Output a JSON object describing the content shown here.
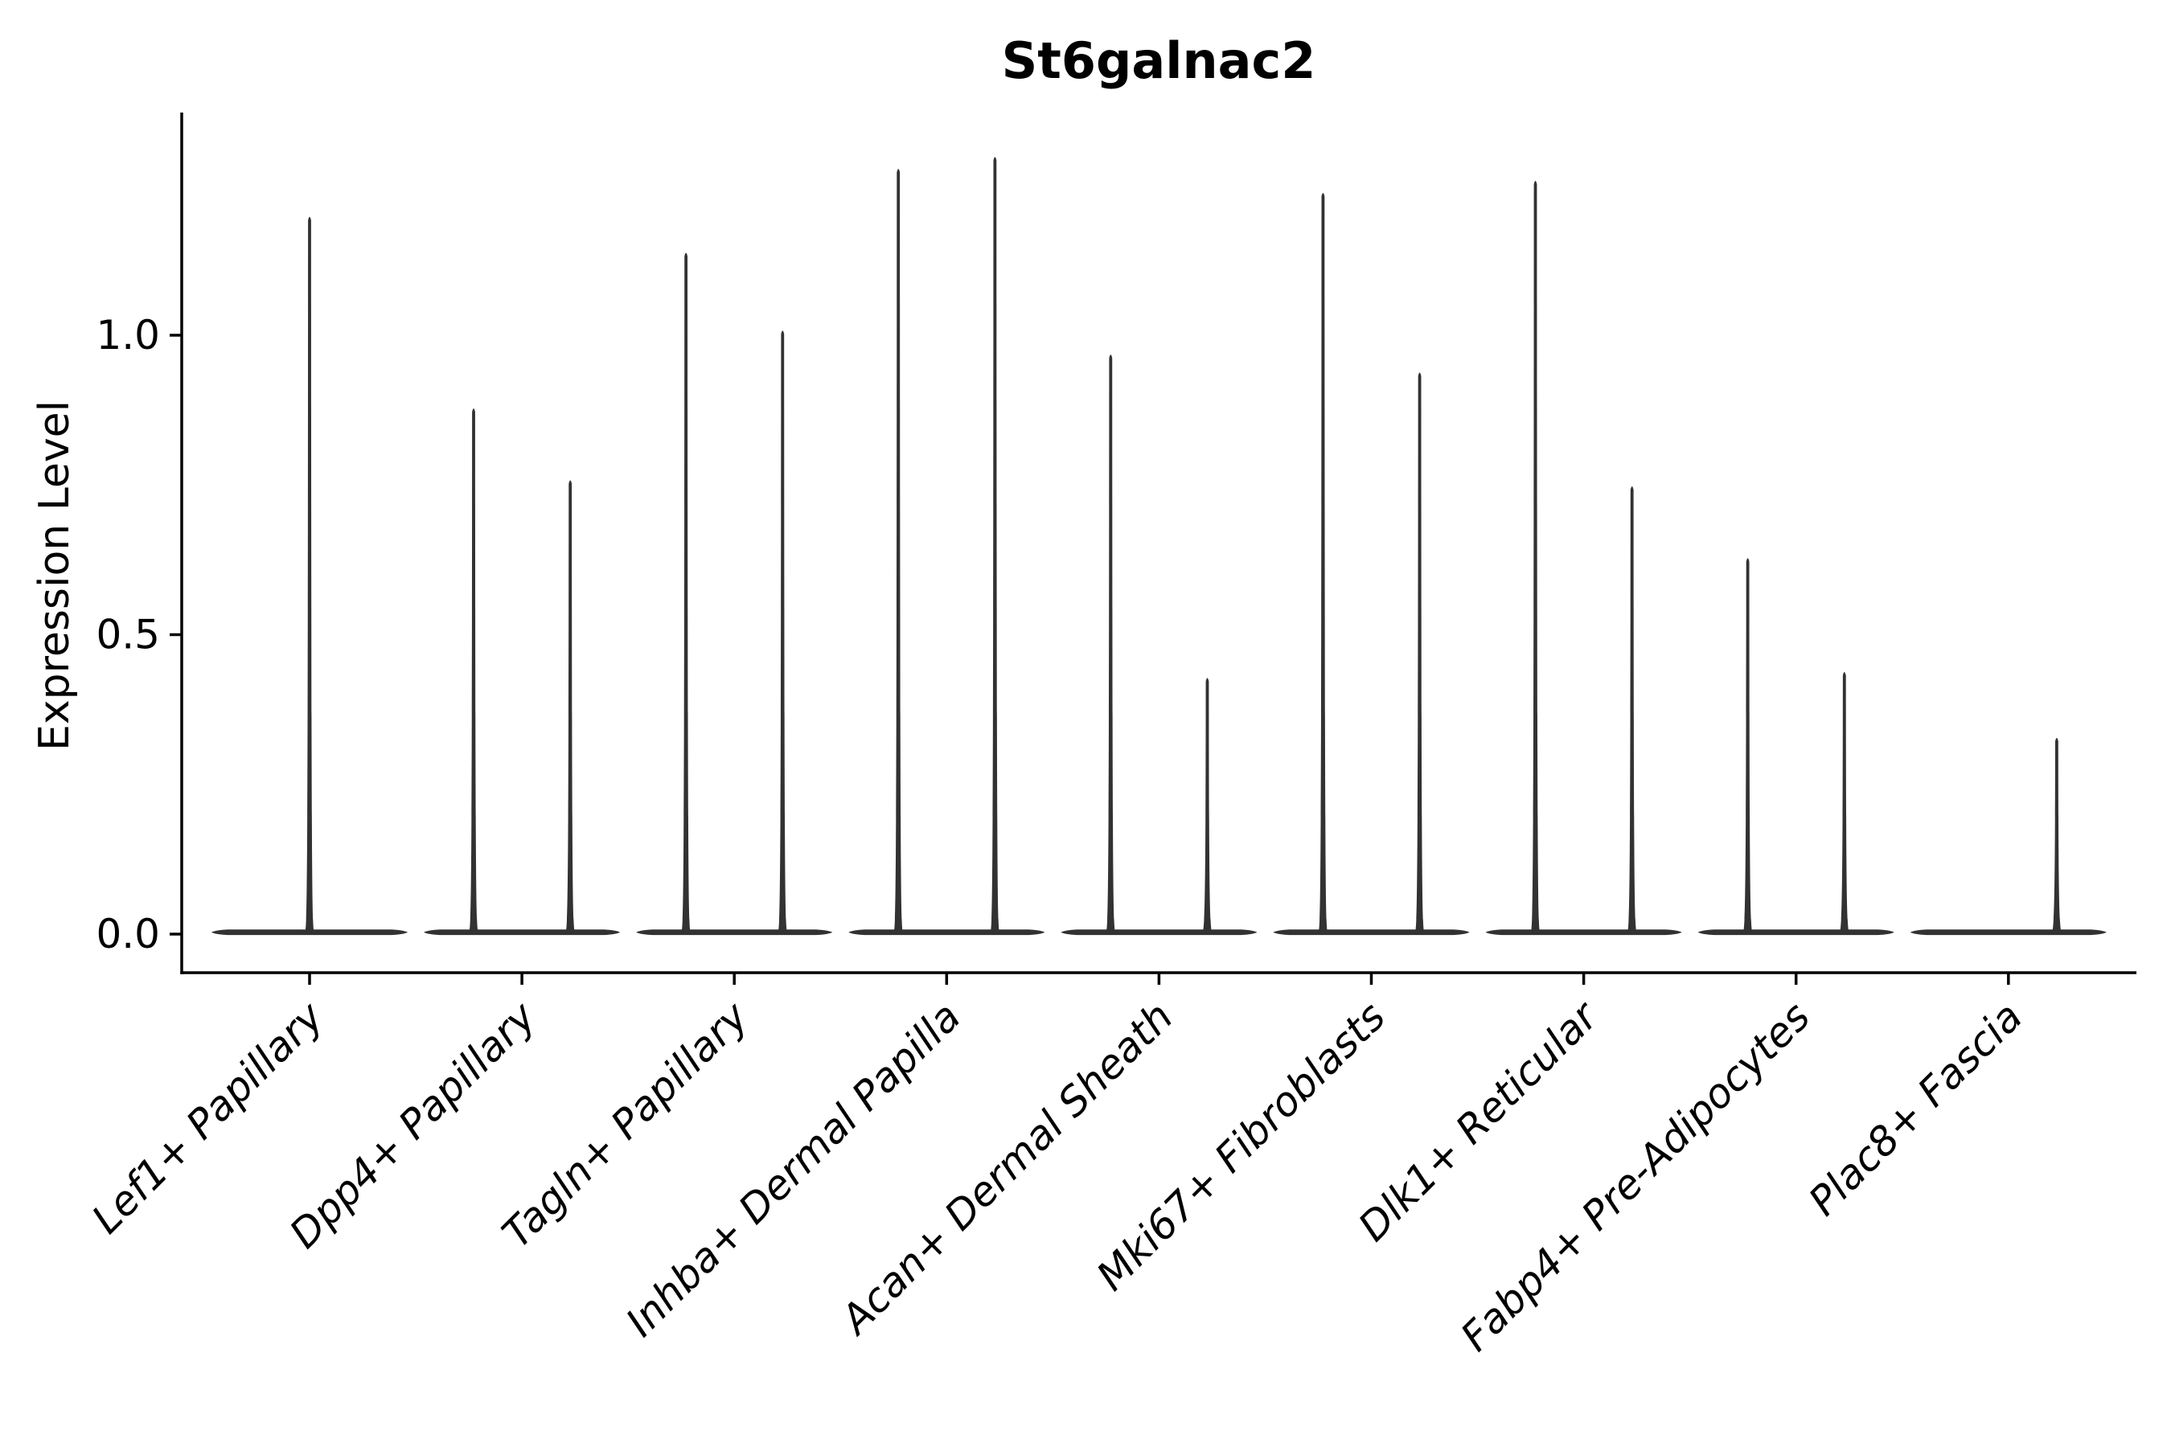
{
  "figure": {
    "background": "#ffffff",
    "text_color": "#000000",
    "violin_color": "#323232",
    "axis_color": "#000000"
  },
  "chart_data": {
    "type": "violin",
    "title": "St6galnac2",
    "xlabel": "",
    "ylabel": "Expression Level",
    "ylim": [
      -0.06,
      1.37
    ],
    "ytick_values": [
      0.0,
      0.5,
      1.0
    ],
    "ytick_labels": [
      "0.0",
      "0.5",
      "1.0"
    ],
    "grid": false,
    "legend_position": "none",
    "categories": [
      "Lef1+ Papillary",
      "Dpp4+ Papillary",
      "Tagln+ Papillary",
      "Inhba+ Dermal Papilla",
      "Acan+ Dermal Sheath",
      "Mki67+ Fibroblasts",
      "Dlk1+ Reticular",
      "Fabp4+ Pre-Adipocytes",
      "Plac8+ Fascia"
    ],
    "violins": [
      {
        "category": "Lef1+ Papillary",
        "spikes": [
          {
            "offset": 0.0,
            "max": 1.2
          }
        ]
      },
      {
        "category": "Dpp4+ Papillary",
        "spikes": [
          {
            "offset": -0.25,
            "max": 0.88
          },
          {
            "offset": 0.25,
            "max": 0.76
          }
        ]
      },
      {
        "category": "Tagln+ Papillary",
        "spikes": [
          {
            "offset": -0.25,
            "max": 1.14
          },
          {
            "offset": 0.25,
            "max": 1.01
          }
        ]
      },
      {
        "category": "Inhba+ Dermal Papilla",
        "spikes": [
          {
            "offset": -0.25,
            "max": 1.28
          },
          {
            "offset": 0.25,
            "max": 1.3
          }
        ]
      },
      {
        "category": "Acan+ Dermal Sheath",
        "spikes": [
          {
            "offset": -0.25,
            "max": 0.97
          },
          {
            "offset": 0.25,
            "max": 0.43
          }
        ]
      },
      {
        "category": "Mki67+ Fibroblasts",
        "spikes": [
          {
            "offset": -0.25,
            "max": 1.24
          },
          {
            "offset": 0.25,
            "max": 0.94
          }
        ]
      },
      {
        "category": "Dlk1+ Reticular",
        "spikes": [
          {
            "offset": -0.25,
            "max": 1.26
          },
          {
            "offset": 0.25,
            "max": 0.75
          }
        ]
      },
      {
        "category": "Fabp4+ Pre-Adipocytes",
        "spikes": [
          {
            "offset": -0.25,
            "max": 0.63
          },
          {
            "offset": 0.25,
            "max": 0.44
          }
        ]
      },
      {
        "category": "Plac8+ Fascia",
        "spikes": [
          {
            "offset": 0.25,
            "max": 0.33
          }
        ]
      }
    ]
  }
}
